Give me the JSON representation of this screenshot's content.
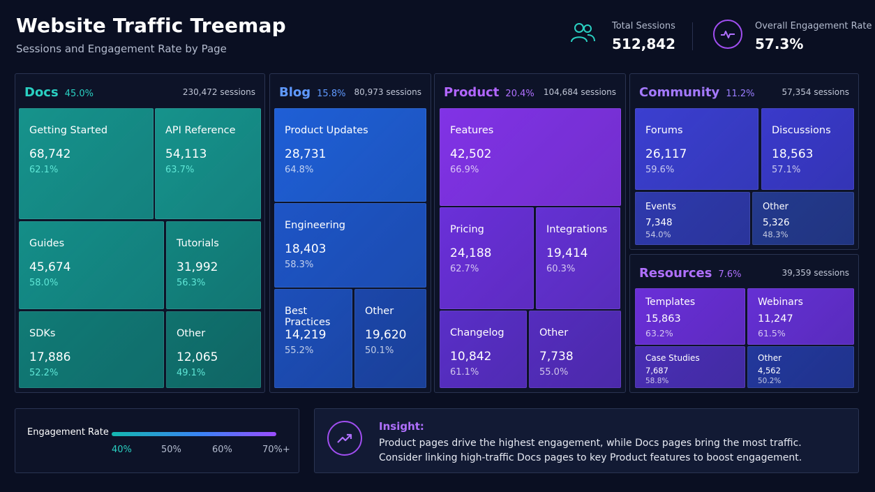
{
  "header": {
    "title": "Website Traffic Treemap",
    "subtitle": "Sessions and Engagement Rate by Page"
  },
  "kpis": {
    "total_sessions_label": "Total Sessions",
    "total_sessions_value": "512,842",
    "engagement_label": "Overall Engagement Rate",
    "engagement_value": "57.3%",
    "icons": [
      "users-icon",
      "activity-icon"
    ]
  },
  "chart_data": {
    "type": "treemap",
    "title": "Website Traffic Treemap",
    "subtitle": "Sessions and Engagement Rate by Page",
    "groups": [
      {
        "name": "Docs",
        "share": "45.0%",
        "sessions": "230,472 sessions",
        "color": "#19c4b3",
        "pages": [
          {
            "name": "Getting Started",
            "sessions": "68,742",
            "rate": "62.1%"
          },
          {
            "name": "API Reference",
            "sessions": "54,113",
            "rate": "63.7%"
          },
          {
            "name": "Guides",
            "sessions": "45,674",
            "rate": "58.0%"
          },
          {
            "name": "Tutorials",
            "sessions": "31,992",
            "rate": "56.3%"
          },
          {
            "name": "SDKs",
            "sessions": "17,886",
            "rate": "52.2%"
          },
          {
            "name": "Other",
            "sessions": "12,065",
            "rate": "49.1%"
          }
        ]
      },
      {
        "name": "Blog",
        "share": "15.8%",
        "sessions": "80,973 sessions",
        "color": "#4d8fff",
        "pages": [
          {
            "name": "Product Updates",
            "sessions": "28,731",
            "rate": "64.8%"
          },
          {
            "name": "Engineering",
            "sessions": "18,403",
            "rate": "58.3%"
          },
          {
            "name": "Best Practices",
            "sessions": "14,219",
            "rate": "55.2%"
          },
          {
            "name": "Other",
            "sessions": "19,620",
            "rate": "50.1%"
          }
        ]
      },
      {
        "name": "Product",
        "share": "20.4%",
        "sessions": "104,684 sessions",
        "color": "#b266ff",
        "pages": [
          {
            "name": "Features",
            "sessions": "42,502",
            "rate": "66.9%"
          },
          {
            "name": "Pricing",
            "sessions": "24,188",
            "rate": "62.7%"
          },
          {
            "name": "Integrations",
            "sessions": "19,414",
            "rate": "60.3%"
          },
          {
            "name": "Changelog",
            "sessions": "10,842",
            "rate": "61.1%"
          },
          {
            "name": "Other",
            "sessions": "7,738",
            "rate": "55.0%"
          }
        ]
      },
      {
        "name": "Community",
        "share": "11.2%",
        "sessions": "57,354 sessions",
        "color": "#9a7dff",
        "pages": [
          {
            "name": "Forums",
            "sessions": "26,117",
            "rate": "59.6%"
          },
          {
            "name": "Discussions",
            "sessions": "18,563",
            "rate": "57.1%"
          },
          {
            "name": "Events",
            "sessions": "7,348",
            "rate": "54.0%"
          },
          {
            "name": "Other",
            "sessions": "5,326",
            "rate": "48.3%"
          }
        ]
      },
      {
        "name": "Resources",
        "share": "7.6%",
        "sessions": "39,359 sessions",
        "color": "#a877ff",
        "pages": [
          {
            "name": "Templates",
            "sessions": "15,863",
            "rate": "63.2%"
          },
          {
            "name": "Webinars",
            "sessions": "11,247",
            "rate": "61.5%"
          },
          {
            "name": "Case Studies",
            "sessions": "7,687",
            "rate": "58.8%"
          },
          {
            "name": "Other",
            "sessions": "4,562",
            "rate": "50.2%"
          }
        ]
      }
    ],
    "color_scale": {
      "label": "Engagement Rate",
      "ticks": [
        "40%",
        "50%",
        "60%",
        "70%+"
      ],
      "stops": [
        "#14b8b0",
        "#3b82f6",
        "#9b4dff"
      ]
    }
  },
  "insight": {
    "title": "Insight:",
    "line1": "Product pages drive the highest engagement, while Docs pages bring the most traffic.",
    "line2": "Consider linking high-traffic Docs pages to key Product features to boost engagement.",
    "icon": "trend-up-icon"
  }
}
